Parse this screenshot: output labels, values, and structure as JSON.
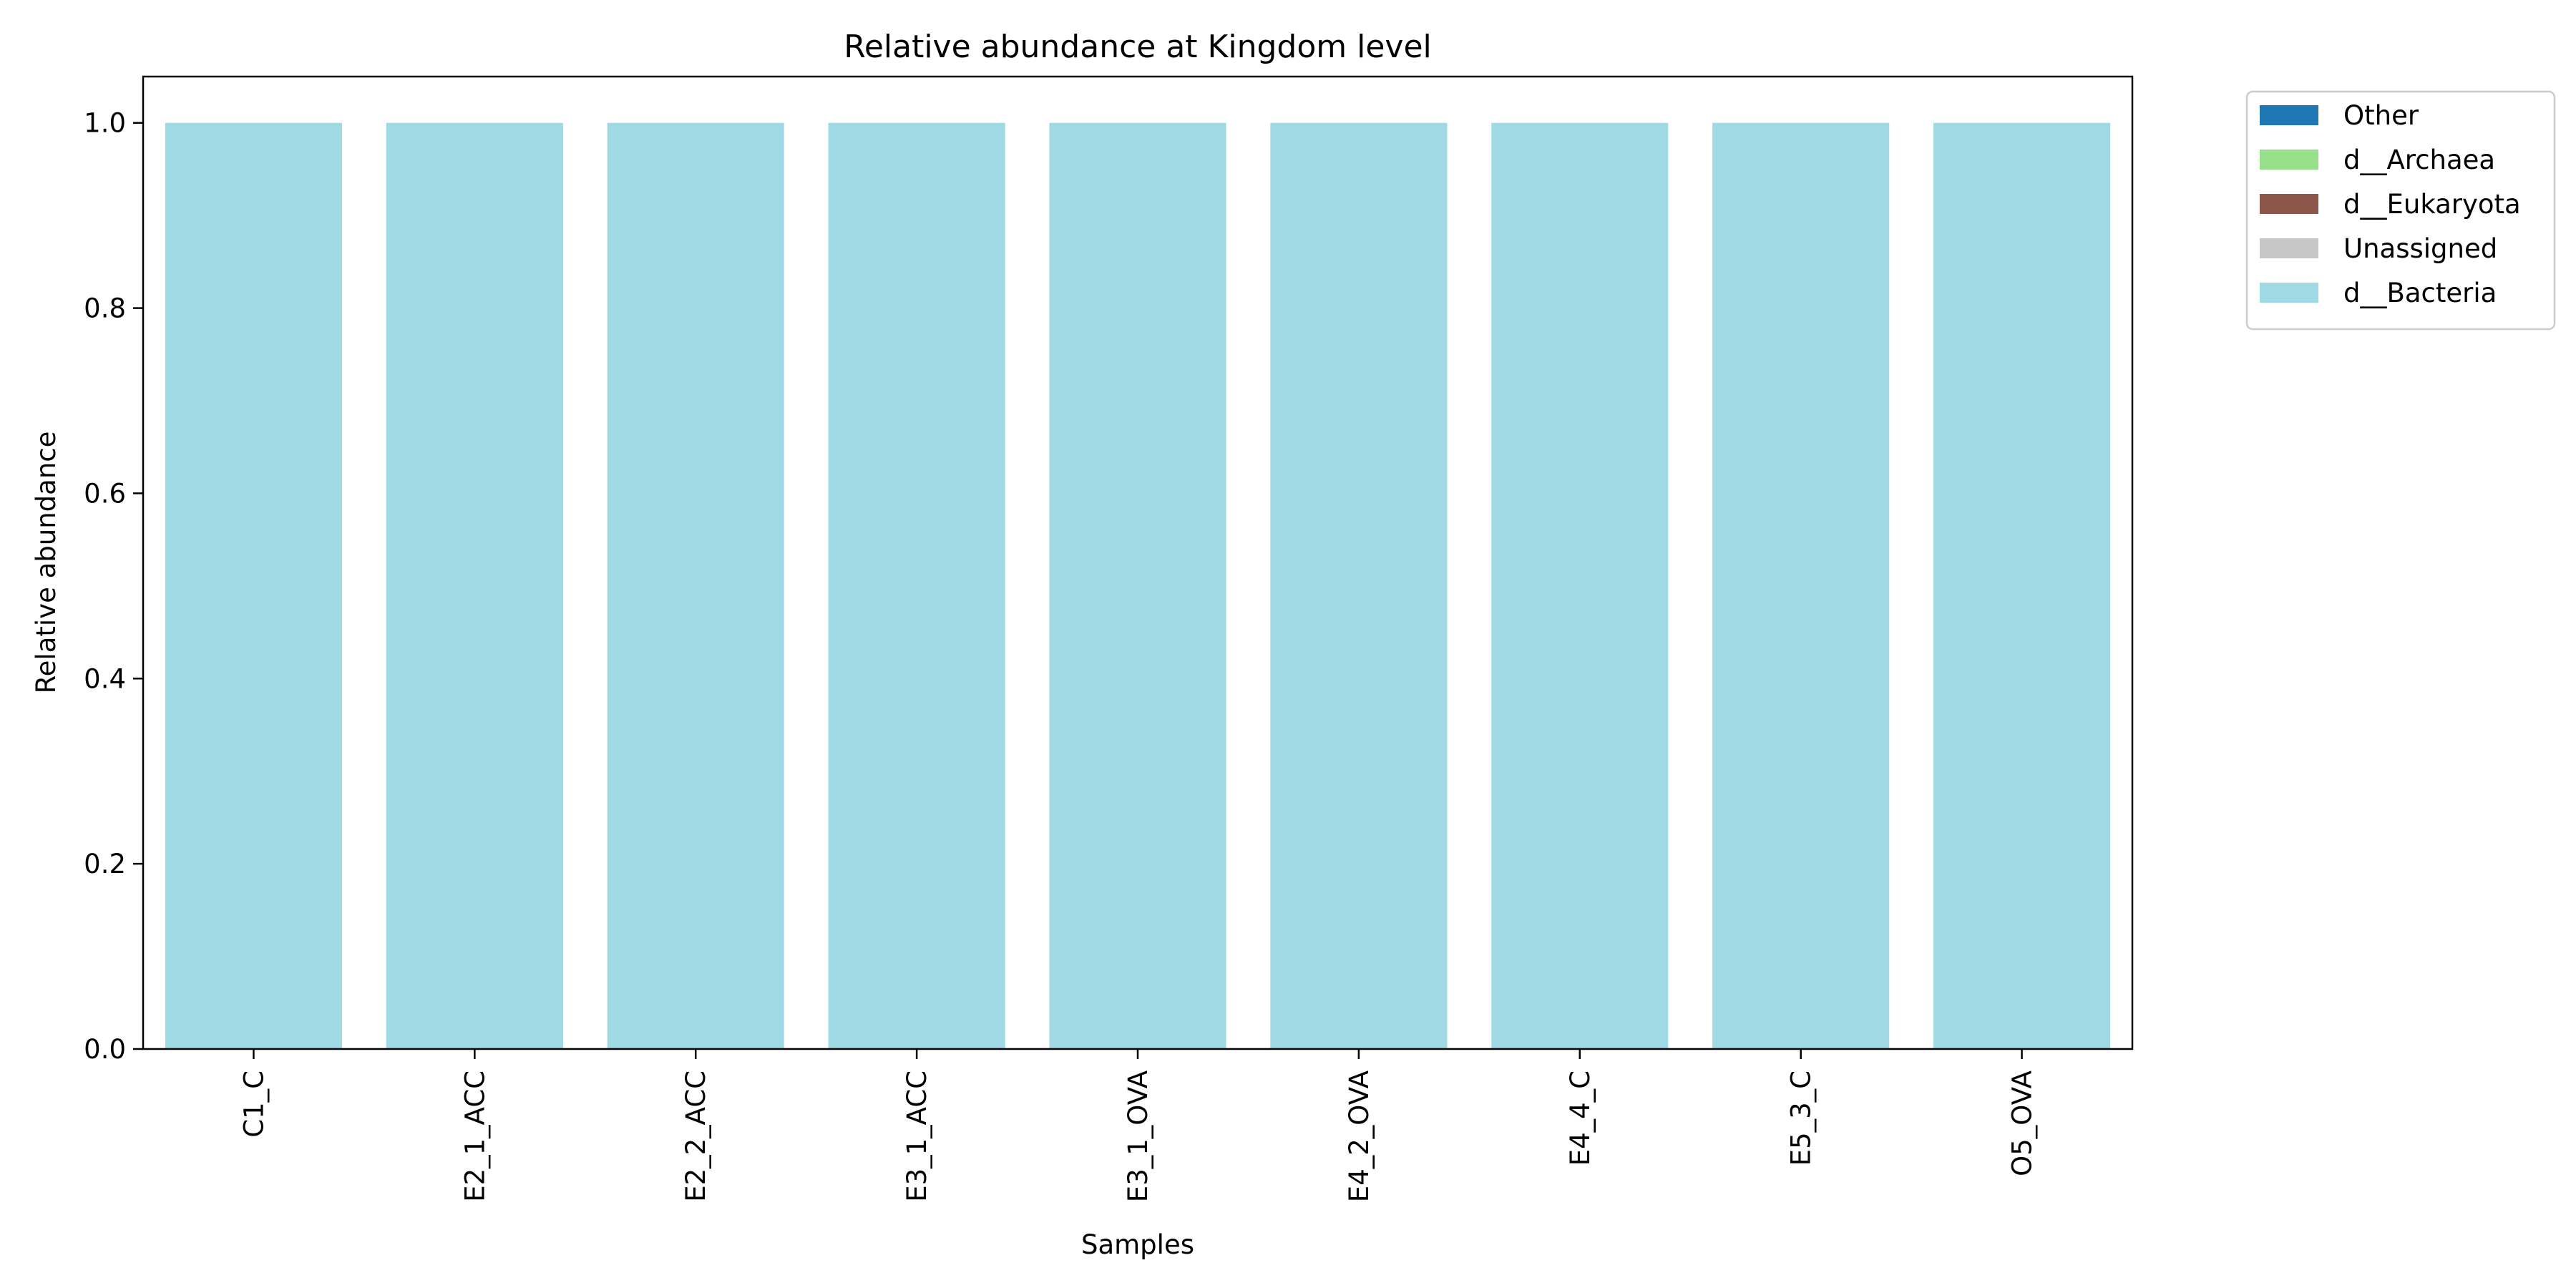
{
  "chart_data": {
    "type": "bar",
    "stacked": true,
    "title": "Relative abundance at Kingdom level",
    "xlabel": "Samples",
    "ylabel": "Relative abundance",
    "ylim": [
      0,
      1.05
    ],
    "yticks": [
      0.0,
      0.2,
      0.4,
      0.6,
      0.8,
      1.0
    ],
    "ytick_labels": [
      "0.0",
      "0.2",
      "0.4",
      "0.6",
      "0.8",
      "1.0"
    ],
    "categories": [
      "C1_C",
      "E2_1_ACC",
      "E2_2_ACC",
      "E3_1_ACC",
      "E3_1_OVA",
      "E4_2_OVA",
      "E4_4_C",
      "E5_3_C",
      "O5_OVA"
    ],
    "series": [
      {
        "name": "d__Bacteria",
        "color": "#9fd9e4",
        "values": [
          1.0,
          1.0,
          1.0,
          1.0,
          1.0,
          1.0,
          1.0,
          1.0,
          1.0
        ]
      },
      {
        "name": "Unassigned",
        "color": "#c7c7c7",
        "values": [
          0,
          0,
          0,
          0,
          0,
          0,
          0,
          0,
          0
        ]
      },
      {
        "name": "d__Eukaryota",
        "color": "#8c564b",
        "values": [
          0,
          0,
          0,
          0,
          0,
          0,
          0,
          0,
          0
        ]
      },
      {
        "name": "d__Archaea",
        "color": "#98df8a",
        "values": [
          0,
          0,
          0,
          0,
          0,
          0,
          0,
          0,
          0
        ]
      },
      {
        "name": "Other",
        "color": "#1f77b4",
        "values": [
          0,
          0,
          0,
          0,
          0,
          0,
          0,
          0,
          0
        ]
      }
    ],
    "legend": {
      "placement": "outside-top-right",
      "entries": [
        {
          "label": "Other",
          "color": "#1f77b4"
        },
        {
          "label": "d__Archaea",
          "color": "#98df8a"
        },
        {
          "label": "d__Eukaryota",
          "color": "#8c564b"
        },
        {
          "label": "Unassigned",
          "color": "#c7c7c7"
        },
        {
          "label": "d__Bacteria",
          "color": "#9fd9e4"
        }
      ]
    },
    "grid": false
  }
}
